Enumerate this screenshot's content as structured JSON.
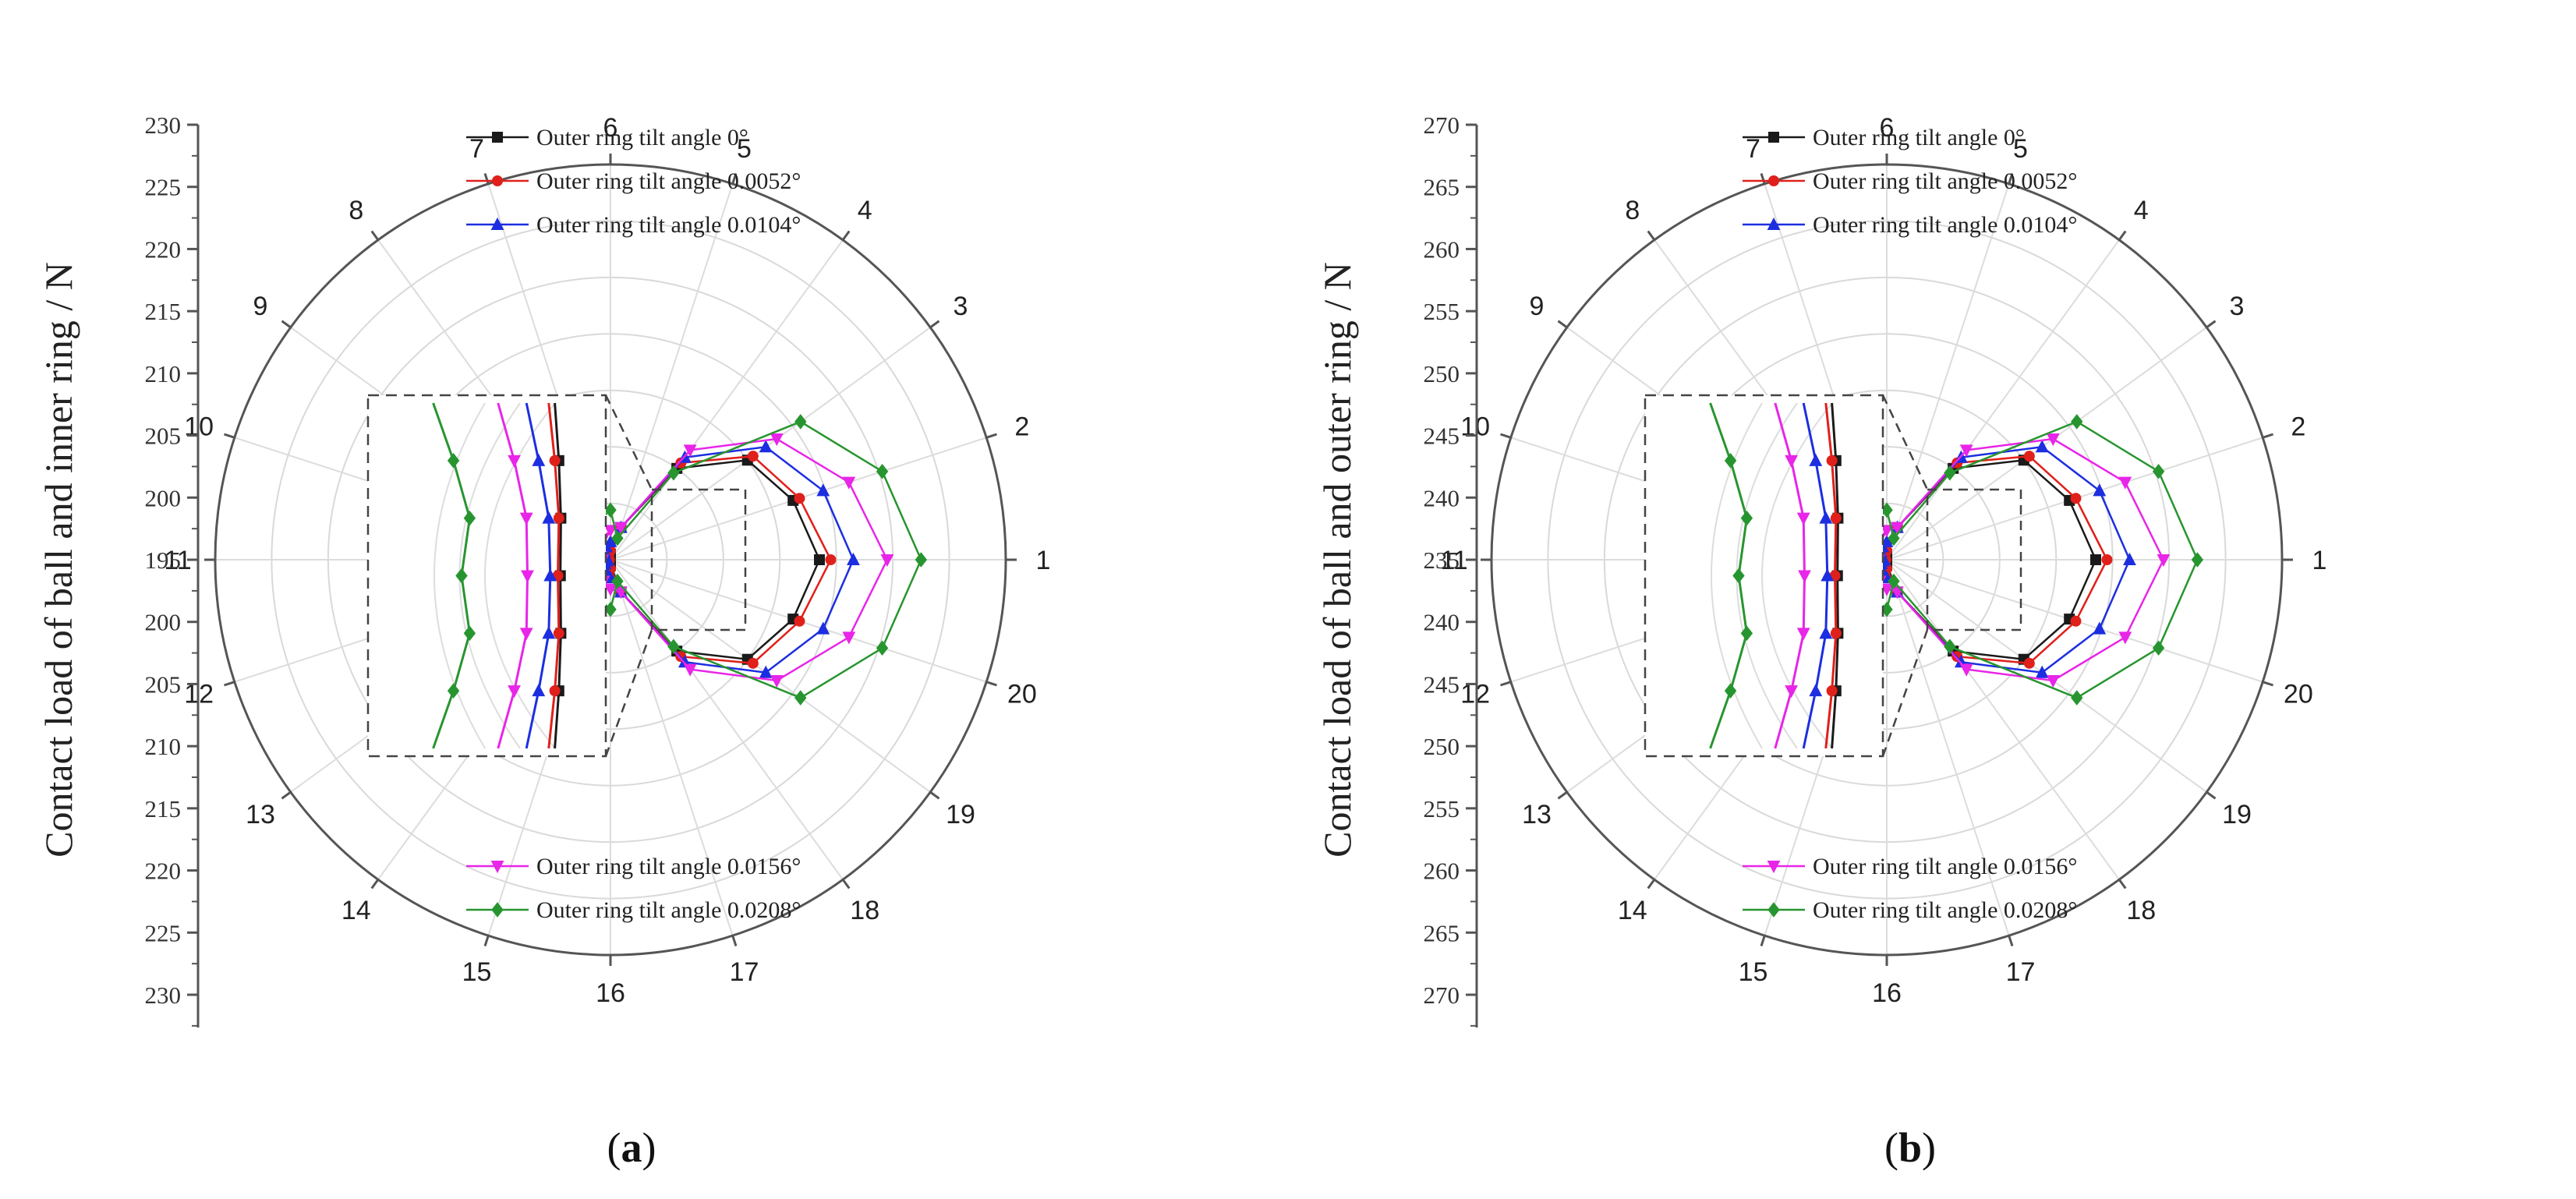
{
  "chart_data": [
    {
      "type": "polar-line",
      "panel_label": "(a)",
      "panel_letter": "a",
      "ylabel": "Contact  load of ball and inner ring / N",
      "radial_ticks_upper": [
        "230",
        "225",
        "220",
        "215",
        "210",
        "205",
        "200",
        "195"
      ],
      "radial_ticks_lower": [
        "200",
        "205",
        "210",
        "215",
        "220",
        "225",
        "230"
      ],
      "angle_labels": [
        "1",
        "2",
        "3",
        "4",
        "5",
        "6",
        "7",
        "8",
        "9",
        "10",
        "11",
        "12",
        "13",
        "14",
        "15",
        "16",
        "17",
        "18",
        "19",
        "20"
      ],
      "radial_range": [
        195,
        230
      ],
      "series": [
        {
          "name": "Outer ring  tilt  angle 0°",
          "color": "#1a1a1a",
          "marker": "square",
          "values": [
            213.5,
            212.0,
            210.0,
            205.0,
            198.0,
            195.5,
            195.3,
            195.2,
            195.1,
            195.05,
            195.05,
            195.05,
            195.1,
            195.2,
            195.3,
            195.5,
            198.0,
            205.0,
            210.0,
            212.0
          ]
        },
        {
          "name": "Outer ring  tilt  angle 0.0052°",
          "color": "#e0201b",
          "marker": "circle",
          "values": [
            214.5,
            212.6,
            210.6,
            205.6,
            198.0,
            195.8,
            195.5,
            195.35,
            195.2,
            195.1,
            195.1,
            195.1,
            195.2,
            195.35,
            195.5,
            195.8,
            198.0,
            205.6,
            210.6,
            212.6
          ]
        },
        {
          "name": "Outer ring  tilt  angle 0.0104°",
          "color": "#1c2ee0",
          "marker": "triangle-up",
          "values": [
            216.5,
            214.8,
            212.0,
            206.2,
            198.0,
            196.6,
            196.2,
            195.9,
            195.6,
            195.35,
            195.25,
            195.35,
            195.6,
            195.9,
            196.2,
            196.6,
            198.0,
            206.2,
            212.0,
            214.8
          ]
        },
        {
          "name": "Outer ring  tilt  angle 0.0156°",
          "color": "#e825e8",
          "marker": "triangle-down",
          "values": [
            219.5,
            217.2,
            213.2,
            207.0,
            198.0,
            197.6,
            197.0,
            196.6,
            196.2,
            195.9,
            195.7,
            195.9,
            196.2,
            196.6,
            197.0,
            197.6,
            198.0,
            207.0,
            213.2,
            217.2
          ]
        },
        {
          "name": "Outer ring  tilt  angle 0.0208°",
          "color": "#27952f",
          "marker": "diamond",
          "values": [
            222.5,
            220.3,
            215.8,
            204.5,
            197.0,
            199.4,
            198.6,
            198.2,
            197.7,
            197.3,
            197.0,
            197.3,
            197.7,
            198.2,
            198.6,
            199.4,
            197.0,
            204.5,
            215.8,
            220.3
          ]
        }
      ]
    },
    {
      "type": "polar-line",
      "panel_label": "(b)",
      "panel_letter": "b",
      "ylabel": "Contact load of  ball and outer ring / N",
      "radial_ticks_upper": [
        "270",
        "265",
        "260",
        "255",
        "250",
        "245",
        "240",
        "235"
      ],
      "radial_ticks_lower": [
        "240",
        "245",
        "250",
        "255",
        "260",
        "265",
        "270"
      ],
      "angle_labels": [
        "1",
        "2",
        "3",
        "4",
        "5",
        "6",
        "7",
        "8",
        "9",
        "10",
        "11",
        "12",
        "13",
        "14",
        "15",
        "16",
        "17",
        "18",
        "19",
        "20"
      ],
      "radial_range": [
        235,
        270
      ],
      "series": [
        {
          "name": "Outer ring  tilt  angle 0°",
          "color": "#1a1a1a",
          "marker": "square",
          "values": [
            253.5,
            252.0,
            250.0,
            245.0,
            238.0,
            235.5,
            235.3,
            235.2,
            235.1,
            235.05,
            235.05,
            235.05,
            235.1,
            235.2,
            235.3,
            235.5,
            238.0,
            245.0,
            250.0,
            252.0
          ]
        },
        {
          "name": "Outer ring  tilt  angle 0.0052°",
          "color": "#e0201b",
          "marker": "circle",
          "values": [
            254.5,
            252.6,
            250.6,
            245.6,
            238.0,
            235.8,
            235.5,
            235.35,
            235.2,
            235.1,
            235.1,
            235.1,
            235.2,
            235.35,
            235.5,
            235.8,
            238.0,
            245.6,
            250.6,
            252.6
          ]
        },
        {
          "name": "Outer ring  tilt  angle 0.0104°",
          "color": "#1c2ee0",
          "marker": "triangle-up",
          "values": [
            256.5,
            254.8,
            252.0,
            246.2,
            238.0,
            236.6,
            236.2,
            235.9,
            235.6,
            235.35,
            235.25,
            235.35,
            235.6,
            235.9,
            236.2,
            236.6,
            238.0,
            246.2,
            252.0,
            254.8
          ]
        },
        {
          "name": "Outer ring  tilt  angle 0.0156°",
          "color": "#e825e8",
          "marker": "triangle-down",
          "values": [
            259.5,
            257.2,
            253.2,
            247.0,
            238.0,
            237.6,
            237.0,
            236.6,
            236.2,
            235.9,
            235.7,
            235.9,
            236.2,
            236.6,
            237.0,
            237.6,
            238.0,
            247.0,
            253.2,
            257.2
          ]
        },
        {
          "name": "Outer ring  tilt  angle 0.0208°",
          "color": "#27952f",
          "marker": "diamond",
          "values": [
            262.5,
            260.3,
            255.8,
            244.5,
            237.0,
            239.4,
            238.6,
            238.2,
            237.7,
            237.3,
            237.0,
            237.3,
            237.7,
            238.2,
            238.6,
            239.4,
            237.0,
            244.5,
            255.8,
            260.3
          ]
        }
      ]
    }
  ]
}
